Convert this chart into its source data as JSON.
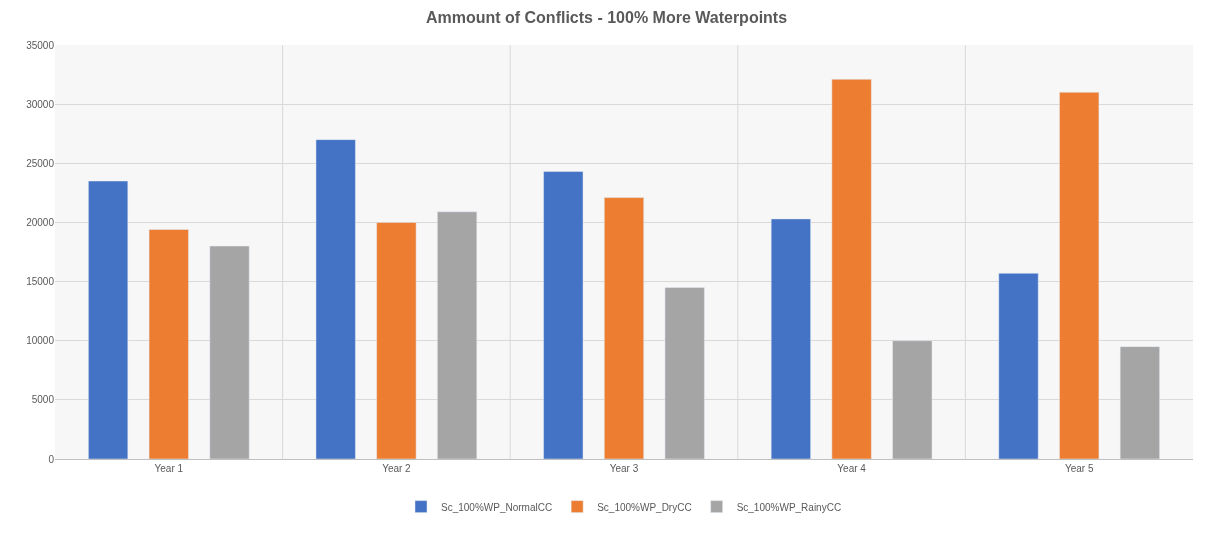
{
  "chart_data": {
    "type": "bar",
    "title": "Ammount of Conflicts - 100% More Waterpoints",
    "categories": [
      "Year 1",
      "Year 2",
      "Year 3",
      "Year 4",
      "Year 5"
    ],
    "series": [
      {
        "name": "Sc_100%WP_NormalCC",
        "color": "#4472c4",
        "values": [
          23500,
          27000,
          24300,
          20300,
          15700
        ]
      },
      {
        "name": "Sc_100%WP_DryCC",
        "color": "#ed7d31",
        "values": [
          19400,
          20000,
          22100,
          32100,
          31000
        ]
      },
      {
        "name": "Sc_100%WP_RainyCC",
        "color": "#a5a5a5",
        "values": [
          18000,
          20900,
          14500,
          10000,
          9500
        ]
      }
    ],
    "ylim": [
      0,
      35000
    ],
    "yticks": [
      0,
      5000,
      10000,
      15000,
      20000,
      25000,
      30000,
      35000
    ],
    "grid": true,
    "legend": "bottom"
  }
}
